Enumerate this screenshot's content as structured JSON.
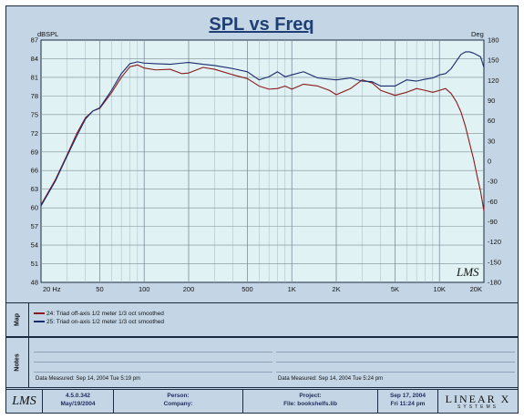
{
  "chart_data": {
    "type": "line",
    "title": "SPL vs Freq",
    "y_left_label": "dBSPL",
    "y_right_label": "Deg",
    "x_scale": "log",
    "xlim": [
      20,
      20000
    ],
    "ylim": [
      48,
      87
    ],
    "y2lim": [
      -180,
      180
    ],
    "x_ticks": [
      {
        "value": 20,
        "label": "20 Hz"
      },
      {
        "value": 50,
        "label": "50"
      },
      {
        "value": 100,
        "label": "100"
      },
      {
        "value": 200,
        "label": "200"
      },
      {
        "value": 500,
        "label": "500"
      },
      {
        "value": 1000,
        "label": "1K"
      },
      {
        "value": 2000,
        "label": "2K"
      },
      {
        "value": 5000,
        "label": "5K"
      },
      {
        "value": 10000,
        "label": "10K"
      },
      {
        "value": 20000,
        "label": "20K"
      }
    ],
    "y_ticks": [
      "48",
      "51",
      "54",
      "57",
      "60",
      "63",
      "66",
      "69",
      "72",
      "75",
      "78",
      "81",
      "84",
      "87"
    ],
    "y2_ticks": [
      "-180",
      "-150",
      "-120",
      "-90",
      "-60",
      "-30",
      "0",
      "30",
      "60",
      "90",
      "120",
      "150",
      "180"
    ],
    "grid": true,
    "series": [
      {
        "name": "24: Triad off-axis 1/2 meter 1/3 oct smoothed",
        "color": "#8b1a1a",
        "x": [
          20,
          25,
          30,
          35,
          40,
          45,
          50,
          60,
          70,
          80,
          90,
          100,
          120,
          150,
          180,
          200,
          250,
          300,
          400,
          500,
          600,
          700,
          800,
          900,
          1000,
          1200,
          1500,
          1800,
          2000,
          2500,
          3000,
          3500,
          4000,
          5000,
          6000,
          7000,
          8000,
          9000,
          10000,
          11000,
          12000,
          13000,
          14000,
          15000,
          16000,
          17000,
          18000,
          19000,
          20000
        ],
        "y": [
          60.5,
          64.5,
          68.5,
          72,
          74.5,
          75.6,
          76,
          78.5,
          81,
          82.7,
          83,
          82.5,
          82.2,
          82.3,
          81.6,
          81.7,
          82.6,
          82.3,
          81.4,
          80.8,
          79.6,
          79.1,
          79.2,
          79.6,
          79.1,
          79.9,
          79.6,
          78.9,
          78.2,
          79.2,
          80.6,
          80.1,
          78.9,
          78.1,
          78.6,
          79.2,
          78.9,
          78.6,
          78.9,
          79.2,
          78.4,
          77.1,
          75.4,
          73.1,
          70.4,
          67.9,
          65.1,
          62.6,
          59.5
        ]
      },
      {
        "name": "25: Triad on-axis 1/2 meter 1/3 oct smoothed",
        "color": "#1a2a6e",
        "x": [
          20,
          25,
          30,
          35,
          40,
          45,
          50,
          60,
          70,
          80,
          90,
          100,
          120,
          150,
          180,
          200,
          250,
          300,
          400,
          500,
          600,
          700,
          800,
          900,
          1000,
          1200,
          1500,
          1800,
          2000,
          2500,
          3000,
          3500,
          4000,
          5000,
          6000,
          7000,
          8000,
          9000,
          10000,
          11000,
          12000,
          13000,
          14000,
          15000,
          16000,
          17000,
          18000,
          19000,
          20000
        ],
        "y": [
          60.3,
          64.3,
          68.3,
          71.6,
          74.3,
          75.6,
          76.1,
          78.9,
          81.6,
          83.2,
          83.5,
          83.3,
          83.2,
          83.1,
          83.3,
          83.4,
          83.1,
          82.9,
          82.4,
          81.9,
          80.6,
          81.1,
          81.9,
          81.1,
          81.4,
          81.9,
          80.9,
          80.7,
          80.6,
          80.9,
          80.4,
          80.3,
          79.6,
          79.6,
          80.6,
          80.4,
          80.7,
          80.9,
          81.4,
          81.6,
          82.4,
          83.6,
          84.7,
          85.1,
          85.1,
          84.9,
          84.6,
          84.3,
          82.6
        ]
      }
    ]
  },
  "brand_mark": "LMS",
  "map_panel": {
    "label": "Map",
    "legend": [
      "24: Triad off-axis 1/2 meter 1/3 oct smoothed",
      "25: Triad on-axis 1/2 meter 1/3 oct smoothed"
    ]
  },
  "notes_panel": {
    "label": "Notes",
    "left_note": "Data Measured:  Sep 14, 2004   Tue   5:19 pm",
    "right_note": "Data Measured:  Sep 14, 2004   Tue   5:24 pm"
  },
  "footer": {
    "logo": "LMS",
    "version": "4.5.0.342",
    "version_date": "May/19/2004",
    "person_label": "Person:",
    "company_label": "Company:",
    "project_label": "Project:",
    "file_label": "File: bookshelfs.lib",
    "date": "Sep 17, 2004",
    "time": "Fri 11:24 pm",
    "vendor": "LINEAR X",
    "vendor_sub": "SYSTEMS"
  },
  "colors": {
    "panel_bg": "#c4d6e6",
    "plot_bg": "#e0f2f3",
    "grid": "#9aaab3",
    "border": "#1a2a40"
  }
}
